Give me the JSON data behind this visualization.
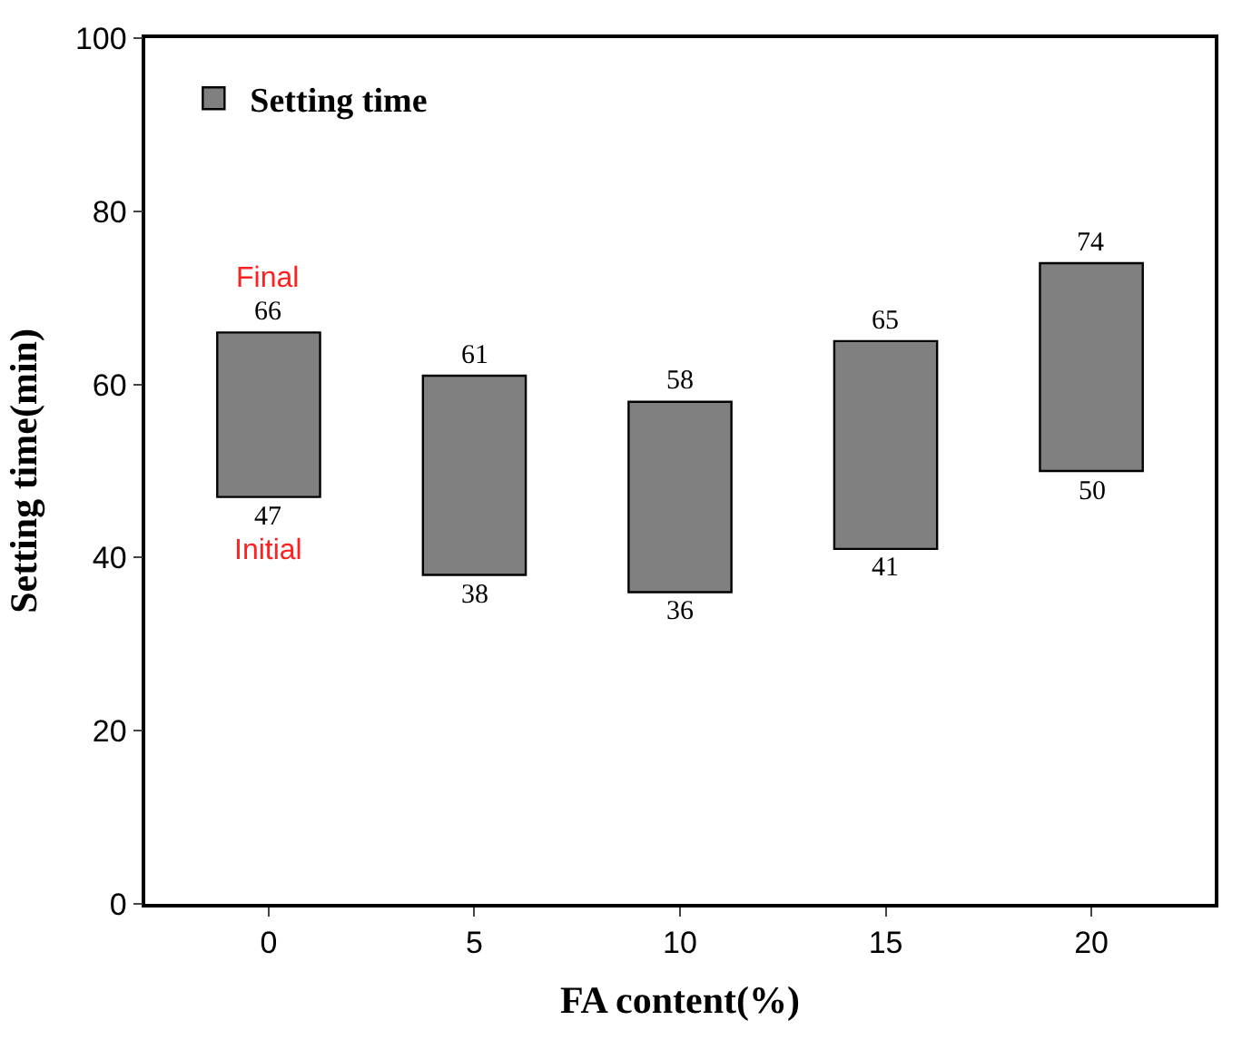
{
  "chart_data": {
    "type": "bar",
    "xlabel": "FA content(%)",
    "ylabel": "Setting time(min)",
    "categories": [
      "0",
      "5",
      "10",
      "15",
      "20"
    ],
    "series": [
      {
        "name": "Setting time",
        "color": "#808080",
        "values": [
          19,
          23,
          22,
          24,
          24
        ],
        "base": [
          47,
          38,
          36,
          41,
          50
        ]
      }
    ],
    "ylim": [
      0,
      100
    ],
    "yticks": [
      0,
      20,
      40,
      60,
      80,
      100
    ],
    "legend": "top left",
    "annotations": [
      {
        "text": "66",
        "x": "0",
        "y": 66
      },
      {
        "text": "47",
        "x": "0",
        "y": 47
      },
      {
        "text": "61",
        "x": "5",
        "y": 61
      },
      {
        "text": "38",
        "x": "5",
        "y": 38
      },
      {
        "text": "58",
        "x": "10",
        "y": 58
      },
      {
        "text": "36",
        "x": "10",
        "y": 36
      },
      {
        "text": "65",
        "x": "15",
        "y": 65
      },
      {
        "text": "41",
        "x": "15",
        "y": 41
      },
      {
        "text": "74",
        "x": "20",
        "y": 74
      },
      {
        "text": "50",
        "x": "20",
        "y": 50
      },
      {
        "text": "Final",
        "x": "0",
        "y": 66
      },
      {
        "text": "Initial",
        "x": "0",
        "y": 47
      }
    ]
  }
}
